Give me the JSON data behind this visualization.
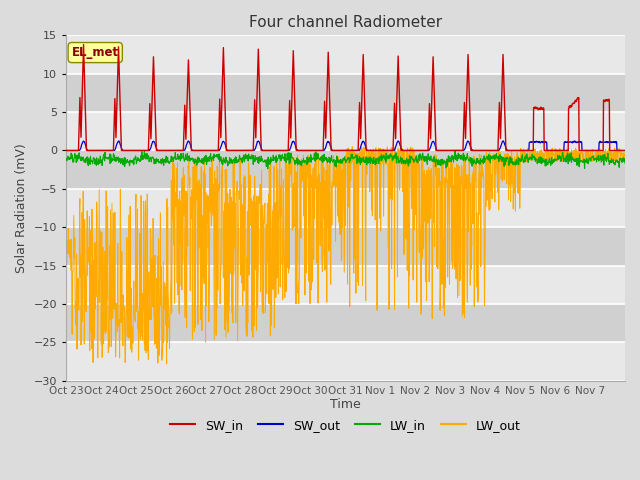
{
  "title": "Four channel Radiometer",
  "xlabel": "Time",
  "ylabel": "Solar Radiation (mV)",
  "ylim": [
    -30,
    15
  ],
  "yticks": [
    -30,
    -25,
    -20,
    -15,
    -10,
    -5,
    0,
    5,
    10,
    15
  ],
  "xtick_labels": [
    "Oct 23",
    "Oct 24",
    "Oct 25",
    "Oct 26",
    "Oct 27",
    "Oct 28",
    "Oct 29",
    "Oct 30",
    "Oct 31",
    "Nov 1",
    "Nov 2",
    "Nov 3",
    "Nov 4",
    "Nov 5",
    "Nov 6",
    "Nov 7"
  ],
  "annotation_text": "EL_met",
  "bg_color": "#dcdcdc",
  "plot_bg_color": "#dcdcdc",
  "grid_color": "white",
  "colors": {
    "SW_in": "#cc0000",
    "SW_out": "#0000cc",
    "LW_in": "#00aa00",
    "LW_out": "#ffaa00"
  },
  "legend_labels": [
    "SW_in",
    "SW_out",
    "LW_in",
    "LW_out"
  ]
}
